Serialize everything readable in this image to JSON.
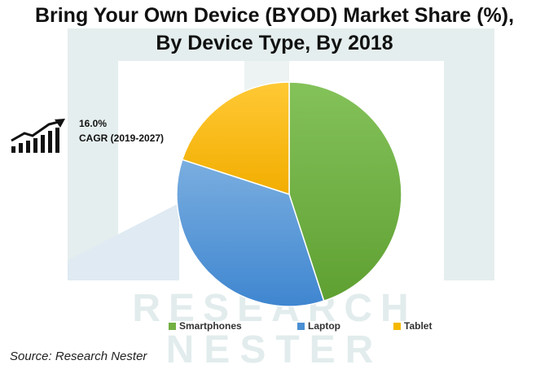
{
  "title_line1": "Bring Your Own Device (BYOD) Market Share (%),",
  "title_line2": "By Device Type, By 2018",
  "cagr": {
    "value": "16.0%",
    "label": "CAGR (2019-2027)",
    "icon": "growth-chart-arrow-icon"
  },
  "source": "Source: Research Nester",
  "watermark": {
    "line1": "RESEARCH",
    "line2": "NESTER"
  },
  "colors": {
    "smartphones": "#72b043",
    "laptop": "#4a8fd4",
    "tablet": "#f5b800",
    "watermark": "#e3ecec"
  },
  "chart_data": {
    "type": "pie",
    "title": "Bring Your Own Device (BYOD) Market Share (%), By Device Type, By 2018",
    "categories": [
      "Smartphones",
      "Laptop",
      "Tablet"
    ],
    "values": [
      45,
      35,
      20
    ],
    "legend_position": "bottom"
  }
}
